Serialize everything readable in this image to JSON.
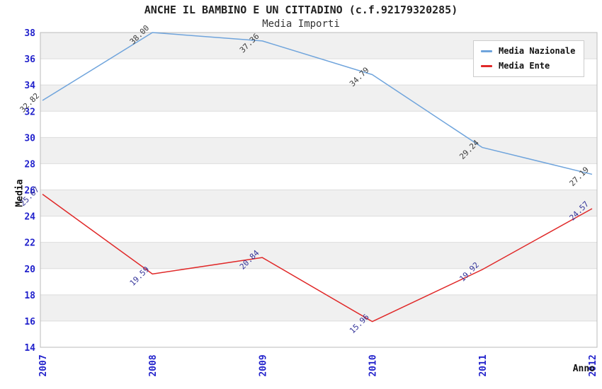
{
  "chart_data": {
    "type": "line",
    "title": "ANCHE IL BAMBINO E UN CITTADINO (c.f.92179320285)",
    "subtitle": "Media Importi",
    "xlabel": "Anno",
    "ylabel": "Media",
    "categories": [
      "2007",
      "2008",
      "2009",
      "2010",
      "2011",
      "2012"
    ],
    "series": [
      {
        "name": "Media Nazionale",
        "color": "#6FA4DC",
        "label_color": "#3C3C3C",
        "values": [
          32.82,
          38.0,
          37.36,
          34.79,
          29.24,
          27.19
        ]
      },
      {
        "name": "Media Ente",
        "color": "#E02828",
        "label_color": "#333399",
        "values": [
          25.67,
          19.59,
          20.84,
          15.96,
          19.92,
          24.57
        ]
      }
    ],
    "ylim": [
      14,
      38
    ],
    "y_tick_step": 2,
    "grid": "horizontal-bands",
    "legend_position": "top-right",
    "colors": {
      "tick_label": "#2222CC",
      "band_gray": "#F0F0F0",
      "band_white": "#FFFFFF",
      "grid_line": "#DDDDDD",
      "plot_border": "#BBBBBB"
    }
  }
}
